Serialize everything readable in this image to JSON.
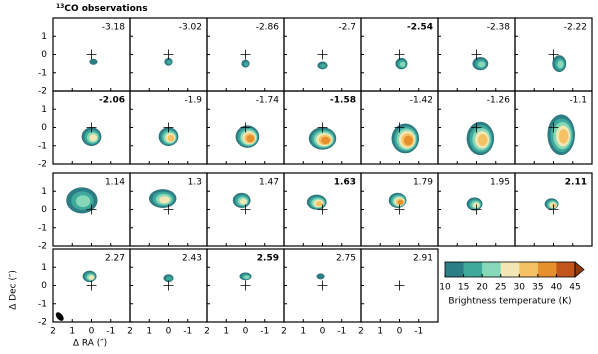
{
  "chart_data": {
    "type": "channel-map",
    "title": "CO observations",
    "title_sup": "13",
    "x_label": "Δ RA (″)",
    "y_label": "Δ Dec (″)",
    "xlim": [
      2,
      -2
    ],
    "xticks": [
      2,
      1,
      0,
      -1
    ],
    "ylim": [
      -2,
      2
    ],
    "yticks": [
      1,
      0,
      -1,
      -2
    ],
    "panels": [
      {
        "label": "-3.18",
        "bold": false
      },
      {
        "label": "-3.02",
        "bold": false
      },
      {
        "label": "-2.86",
        "bold": false
      },
      {
        "label": "-2.7",
        "bold": false
      },
      {
        "label": "-2.54",
        "bold": true
      },
      {
        "label": "-2.38",
        "bold": false
      },
      {
        "label": "-2.22",
        "bold": false
      },
      {
        "label": "-2.06",
        "bold": true
      },
      {
        "label": "-1.9",
        "bold": false
      },
      {
        "label": "-1.74",
        "bold": false
      },
      {
        "label": "-1.58",
        "bold": true
      },
      {
        "label": "-1.42",
        "bold": false
      },
      {
        "label": "-1.26",
        "bold": false
      },
      {
        "label": "-1.1",
        "bold": false
      },
      {
        "label": "1.14",
        "bold": false
      },
      {
        "label": "1.3",
        "bold": false
      },
      {
        "label": "1.47",
        "bold": false
      },
      {
        "label": "1.63",
        "bold": true
      },
      {
        "label": "1.79",
        "bold": false
      },
      {
        "label": "1.95",
        "bold": false
      },
      {
        "label": "2.11",
        "bold": true
      },
      {
        "label": "2.27",
        "bold": false
      },
      {
        "label": "2.43",
        "bold": false
      },
      {
        "label": "2.59",
        "bold": true
      },
      {
        "label": "2.75",
        "bold": false
      },
      {
        "label": "2.91",
        "bold": false
      }
    ],
    "colorbar": {
      "label": "Brightness temperature (K)",
      "clim": [
        10,
        45
      ],
      "ticks": [
        10,
        15,
        20,
        25,
        30,
        35,
        40,
        45
      ],
      "colors": [
        "#2b7d86",
        "#3fa99b",
        "#86d8b8",
        "#f3e8b5",
        "#f4c265",
        "#e58f2d",
        "#c2551b"
      ],
      "extend_color": "#8e3a0f"
    }
  }
}
